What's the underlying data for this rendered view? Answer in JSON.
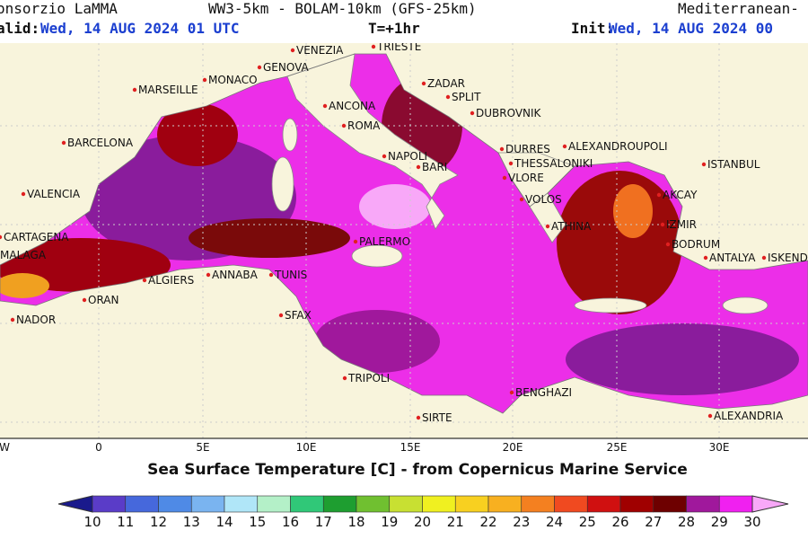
{
  "header": {
    "source": "onsorzio LaMMA",
    "model": "WW3-5km - BOLAM-10km (GFS-25km)",
    "domain": "Mediterranean-",
    "valid_label": "alid:",
    "valid_time": "Wed, 14 AUG 2024  01 UTC",
    "step": "T=+1hr",
    "init_label": "Init:",
    "init_time": "Wed, 14 AUG 2024 00"
  },
  "cities": [
    "VENEZIA",
    "TRIESTE",
    "GENOVA",
    "MONACO",
    "MARSEILLE",
    "ZADAR",
    "SPLIT",
    "ANCONA",
    "DUBROVNIK",
    "ROMA",
    "BARCELONA",
    "DURRES",
    "ALEXANDROUPOLI",
    "NAPOLI",
    "THESSALONIKI",
    "BARI",
    "ISTANBUL",
    "VLORE",
    "VALENCIA",
    "VOLOS",
    "AKCAY",
    "ATHINA",
    "IZMIR",
    "CARTAGENA",
    "PALERMO",
    "BODRUM",
    "MALAGA",
    "ANTALYA",
    "ISKEND",
    "ANNABA",
    "TUNIS",
    "ALGIERS",
    "ORAN",
    "NADOR",
    "SFAX",
    "TRIPOLI",
    "BENGHAZI",
    "SIRTE",
    "ALEXANDRIA"
  ],
  "longitudes": [
    "W",
    "0",
    "5E",
    "10E",
    "15E",
    "20E",
    "25E",
    "30E"
  ],
  "caption": "Sea Surface Temperature [C] - from Copernicus Marine Service",
  "colorbar": {
    "labels": [
      10,
      11,
      12,
      13,
      14,
      15,
      16,
      17,
      18,
      19,
      20,
      21,
      22,
      23,
      24,
      25,
      26,
      27,
      28,
      29,
      30
    ],
    "colors": [
      "#1a1a8c",
      "#5a3cc8",
      "#4668dc",
      "#4f8ae6",
      "#7ab4f0",
      "#b0e6f8",
      "#b4f0c8",
      "#30c878",
      "#1e9e30",
      "#70c030",
      "#c8e032",
      "#f0f020",
      "#f8d020",
      "#f8b020",
      "#f48020",
      "#f04a20",
      "#d01010",
      "#a00000",
      "#6e0000",
      "#a0189c",
      "#f020f0",
      "#f8a8f8"
    ]
  }
}
